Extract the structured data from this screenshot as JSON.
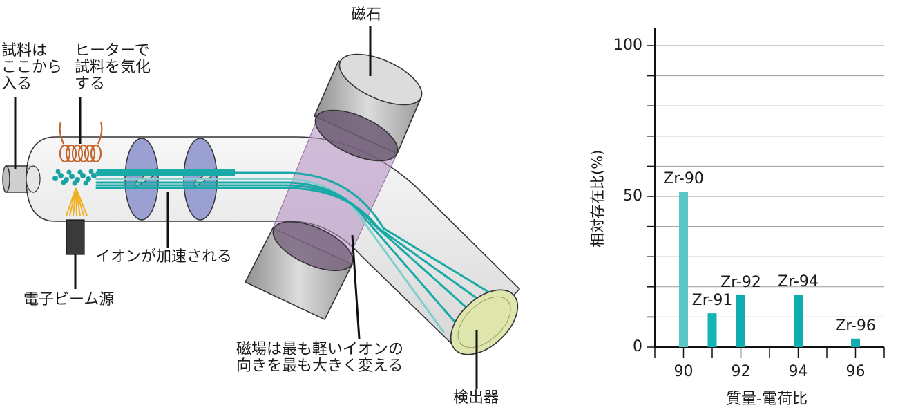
{
  "diagram": {
    "labels": {
      "magnet": "磁石",
      "sample_inlet": "試料は\nここから\n入る",
      "heater": "ヒーターで\n試料を気化\nする",
      "electron_beam": "電子ビーム源",
      "acceleration": "イオンが加速される",
      "deflection": "磁場は最も軽いイオンの\n向きを最も大きく変える",
      "detector": "検出器"
    },
    "colors": {
      "ion_beam": "#19a9a6",
      "magnetic_field": "#b08cc0",
      "accelerator_plate": "#9aa0d2",
      "coil": "#c2662e",
      "electron_rays": "#f0b020",
      "detector": "#dfe6ad"
    }
  },
  "chart_data": {
    "type": "bar",
    "ylabel": "相対存在比(%)",
    "xlabel": "質量-電荷比",
    "xlim": [
      89,
      97
    ],
    "ylim": [
      0,
      100
    ],
    "xticks": [
      90,
      92,
      94,
      96
    ],
    "yticks": [
      0,
      50,
      100
    ],
    "grid": true,
    "points": [
      {
        "x": 90,
        "value": 51.5,
        "label": "Zr-90",
        "color": "#5cc6c6"
      },
      {
        "x": 91,
        "value": 11.2,
        "label": "Zr-91",
        "color": "#13b3b3"
      },
      {
        "x": 92,
        "value": 17.2,
        "label": "Zr-92",
        "color": "#0fadad"
      },
      {
        "x": 94,
        "value": 17.4,
        "label": "Zr-94",
        "color": "#0fadad"
      },
      {
        "x": 96,
        "value": 2.8,
        "label": "Zr-96",
        "color": "#0fadad"
      }
    ]
  }
}
